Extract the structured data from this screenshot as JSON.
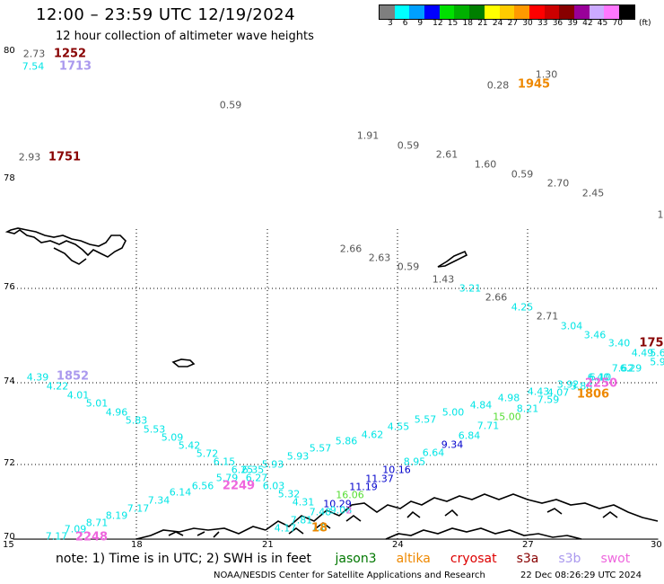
{
  "title": "12:00 – 23:59 UTC 12/19/2024",
  "subtitle": "12 hour collection of altimeter wave heights",
  "colors": {
    "land": "#000000",
    "grid": "#000000",
    "gray": "#555555",
    "cyan": "#00e5e5",
    "blue": "#0000cc",
    "green": "#55dd33",
    "darkgreen": "#007700",
    "orange": "#ee8800",
    "darkred": "#880000",
    "lavender": "#aa99ee",
    "pink": "#ee66dd",
    "red": "#dd0000"
  },
  "scale": {
    "unit_label": "(ft)",
    "entries": [
      {
        "color": "#7f7f7f",
        "label": "3"
      },
      {
        "color": "#00ffff",
        "label": "6"
      },
      {
        "color": "#00a0ff",
        "label": "9"
      },
      {
        "color": "#0000ff",
        "label": "12"
      },
      {
        "color": "#00e000",
        "label": "15"
      },
      {
        "color": "#00b000",
        "label": "18"
      },
      {
        "color": "#007f00",
        "label": "21"
      },
      {
        "color": "#ffff00",
        "label": "24"
      },
      {
        "color": "#ffcc00",
        "label": "27"
      },
      {
        "color": "#ff9900",
        "label": "30"
      },
      {
        "color": "#ff0000",
        "label": "33"
      },
      {
        "color": "#cc0000",
        "label": "36"
      },
      {
        "color": "#880000",
        "label": "39"
      },
      {
        "color": "#990099",
        "label": "42"
      },
      {
        "color": "#ccaaff",
        "label": "45"
      },
      {
        "color": "#ff77ff",
        "label": "70"
      },
      {
        "color": "#000000",
        "label": ""
      }
    ]
  },
  "lat_labels": [
    "80",
    "78",
    "76",
    "74",
    "72",
    "70"
  ],
  "lon_labels": [
    "15",
    "18",
    "21",
    "24",
    "27",
    "30"
  ],
  "wave_labels": [
    {
      "t": "2.73",
      "c": "gray"
    },
    {
      "t": "1252",
      "c": "darkred",
      "big": true
    },
    {
      "t": "7.54",
      "c": "cyan"
    },
    {
      "t": "1713",
      "c": "lavender",
      "big": true
    },
    {
      "t": "1.30",
      "c": "gray"
    },
    {
      "t": "0.28",
      "c": "gray"
    },
    {
      "t": "1945",
      "c": "orange",
      "big": true
    },
    {
      "t": "0.59",
      "c": "gray"
    },
    {
      "t": "1.91",
      "c": "gray"
    },
    {
      "t": "0.59",
      "c": "gray"
    },
    {
      "t": "2.61",
      "c": "gray"
    },
    {
      "t": "1.60",
      "c": "gray"
    },
    {
      "t": "0.59",
      "c": "gray"
    },
    {
      "t": "2.70",
      "c": "gray"
    },
    {
      "t": "2.45",
      "c": "gray"
    },
    {
      "t": "1",
      "c": "gray"
    },
    {
      "t": "2.93",
      "c": "gray"
    },
    {
      "t": "1751",
      "c": "darkred",
      "big": true
    },
    {
      "t": "2.66",
      "c": "gray"
    },
    {
      "t": "2.63",
      "c": "gray"
    },
    {
      "t": "0.59",
      "c": "gray"
    },
    {
      "t": "1.43",
      "c": "gray"
    },
    {
      "t": "3.21",
      "c": "cyan"
    },
    {
      "t": "2.66",
      "c": "gray"
    },
    {
      "t": "4.25",
      "c": "cyan"
    },
    {
      "t": "2.71",
      "c": "gray"
    },
    {
      "t": "3.04",
      "c": "cyan"
    },
    {
      "t": "3.46",
      "c": "cyan"
    },
    {
      "t": "3.40",
      "c": "cyan"
    },
    {
      "t": "175",
      "c": "darkred",
      "big": true
    },
    {
      "t": "4.49",
      "c": "cyan"
    },
    {
      "t": "5.6",
      "c": "cyan"
    },
    {
      "t": "5.9",
      "c": "cyan"
    },
    {
      "t": "7.62",
      "c": "cyan"
    },
    {
      "t": "6.29",
      "c": "cyan"
    },
    {
      "t": "4.39",
      "c": "cyan"
    },
    {
      "t": "1852",
      "c": "lavender",
      "big": true
    },
    {
      "t": "4.22",
      "c": "cyan"
    },
    {
      "t": "4.01",
      "c": "cyan"
    },
    {
      "t": "5.01",
      "c": "cyan"
    },
    {
      "t": "4.96",
      "c": "cyan"
    },
    {
      "t": "5.83",
      "c": "cyan"
    },
    {
      "t": "5.53",
      "c": "cyan"
    },
    {
      "t": "5.09",
      "c": "cyan"
    },
    {
      "t": "5.42",
      "c": "cyan"
    },
    {
      "t": "5.72",
      "c": "cyan"
    },
    {
      "t": "6.15",
      "c": "cyan"
    },
    {
      "t": "6.25",
      "c": "cyan"
    },
    {
      "t": "6.35",
      "c": "cyan"
    },
    {
      "t": "5.79",
      "c": "cyan"
    },
    {
      "t": "6.27",
      "c": "cyan"
    },
    {
      "t": "2249",
      "c": "pink",
      "big": true
    },
    {
      "t": "6.03",
      "c": "cyan"
    },
    {
      "t": "5.93",
      "c": "cyan"
    },
    {
      "t": "5.93",
      "c": "cyan"
    },
    {
      "t": "5.57",
      "c": "cyan"
    },
    {
      "t": "5.86",
      "c": "cyan"
    },
    {
      "t": "4.62",
      "c": "cyan"
    },
    {
      "t": "4.55",
      "c": "cyan"
    },
    {
      "t": "5.57",
      "c": "cyan"
    },
    {
      "t": "5.00",
      "c": "cyan"
    },
    {
      "t": "4.84",
      "c": "cyan"
    },
    {
      "t": "4.98",
      "c": "cyan"
    },
    {
      "t": "4.43",
      "c": "cyan"
    },
    {
      "t": "3.92",
      "c": "cyan"
    },
    {
      "t": "3.88",
      "c": "cyan"
    },
    {
      "t": "4.07",
      "c": "cyan"
    },
    {
      "t": "6.40",
      "c": "cyan"
    },
    {
      "t": "6.10",
      "c": "cyan"
    },
    {
      "t": "2250",
      "c": "pink",
      "big": true
    },
    {
      "t": "1806",
      "c": "orange",
      "big": true
    },
    {
      "t": "7.59",
      "c": "cyan"
    },
    {
      "t": "8.21",
      "c": "cyan"
    },
    {
      "t": "15.00",
      "c": "green"
    },
    {
      "t": "7.71",
      "c": "cyan"
    },
    {
      "t": "6.84",
      "c": "cyan"
    },
    {
      "t": "9.34",
      "c": "blue"
    },
    {
      "t": "6.64",
      "c": "cyan"
    },
    {
      "t": "8.95",
      "c": "cyan"
    },
    {
      "t": "10.16",
      "c": "blue"
    },
    {
      "t": "11.37",
      "c": "blue"
    },
    {
      "t": "11.19",
      "c": "blue"
    },
    {
      "t": "16.06",
      "c": "green"
    },
    {
      "t": "10.29",
      "c": "blue"
    },
    {
      "t": "9.08",
      "c": "cyan"
    },
    {
      "t": "7.48",
      "c": "cyan"
    },
    {
      "t": "7.81",
      "c": "cyan"
    },
    {
      "t": "4.31",
      "c": "cyan"
    },
    {
      "t": "5.32",
      "c": "cyan"
    },
    {
      "t": "4.17",
      "c": "cyan"
    },
    {
      "t": "7.6",
      "c": "cyan"
    },
    {
      "t": "18",
      "c": "orange",
      "big": true
    },
    {
      "t": "2",
      "c": "pink"
    },
    {
      "t": "6.56",
      "c": "cyan"
    },
    {
      "t": "6.14",
      "c": "cyan"
    },
    {
      "t": "7.34",
      "c": "cyan"
    },
    {
      "t": "7.17",
      "c": "cyan"
    },
    {
      "t": "8.19",
      "c": "cyan"
    },
    {
      "t": "8.71",
      "c": "cyan"
    },
    {
      "t": "7.09",
      "c": "cyan"
    },
    {
      "t": "7.17",
      "c": "cyan"
    },
    {
      "t": "2248",
      "c": "pink",
      "big": true
    }
  ],
  "note_prefix": "note:  1) Time is in UTC;  2) SWH is in feet",
  "missions": [
    {
      "name": "jason3",
      "c": "darkgreen"
    },
    {
      "name": "altika",
      "c": "orange"
    },
    {
      "name": "cryosat",
      "c": "red"
    },
    {
      "name": "s3a",
      "c": "darkred"
    },
    {
      "name": "s3b",
      "c": "lavender"
    },
    {
      "name": "swot",
      "c": "pink"
    }
  ],
  "footer_left": "NOAA/NESDIS Center for Satellite Applications and Research",
  "footer_right": "22 Dec 08:26:29 UTC 2024"
}
